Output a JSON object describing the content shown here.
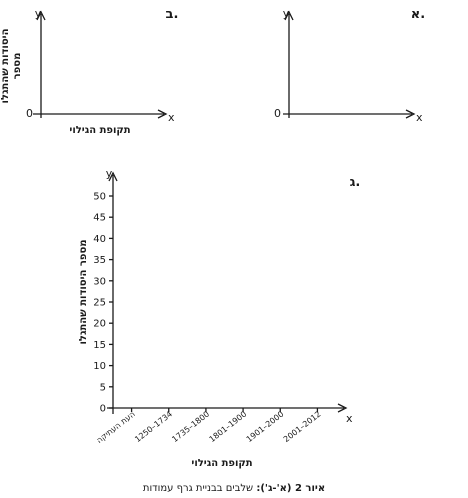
{
  "panels": [
    {
      "id": "a",
      "label": "א.",
      "axis_y": "y",
      "axis_x": "x",
      "origin": "0"
    },
    {
      "id": "b",
      "label": "ב.",
      "axis_y": "y",
      "axis_x": "x",
      "origin": "0",
      "ylabel_line1": "מספר",
      "ylabel_line2": "היסודות שהתגלו",
      "xlabel": "תקופת הגילוי"
    }
  ],
  "chart_data": {
    "type": "bar",
    "panel_label": "ג.",
    "axis_y": "y",
    "axis_x": "x",
    "xlabel": "תקופת הגילוי",
    "ylabel": "מספר היסודות שהתגלו",
    "ylim": [
      0,
      50
    ],
    "y_ticks": [
      "0",
      "5",
      "10",
      "15",
      "20",
      "25",
      "30",
      "35",
      "40",
      "45",
      "50"
    ],
    "categories": [
      "העת העתיקה",
      "1250–1734",
      "1735–1800",
      "1801–1900",
      "1901–2000",
      "2001–2012"
    ],
    "series": []
  },
  "caption": {
    "bold": "איור 2 (א'-ג'):",
    "text": " שלבים בבניית גרף עמודות"
  }
}
